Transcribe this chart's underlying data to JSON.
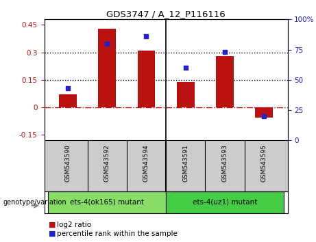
{
  "title": "GDS3747 / A_12_P116116",
  "samples": [
    "GSM543590",
    "GSM543592",
    "GSM543594",
    "GSM543591",
    "GSM543593",
    "GSM543595"
  ],
  "log2_values": [
    0.07,
    0.43,
    0.31,
    0.14,
    0.28,
    -0.055
  ],
  "percentile_values": [
    43,
    80,
    86,
    60,
    73,
    20
  ],
  "ylim_left": [
    -0.18,
    0.48
  ],
  "ylim_right": [
    0,
    100
  ],
  "yticks_left": [
    -0.15,
    0,
    0.15,
    0.3,
    0.45
  ],
  "yticks_right": [
    0,
    25,
    50,
    75,
    100
  ],
  "hlines": [
    0.15,
    0.3
  ],
  "bar_color": "#bb1111",
  "dot_color": "#2222cc",
  "group1_label": "ets-4(ok165) mutant",
  "group2_label": "ets-4(uz1) mutant",
  "group1_color": "#88dd66",
  "group2_color": "#44cc44",
  "genotype_label": "genotype/variation",
  "legend1": "log2 ratio",
  "legend2": "percentile rank within the sample",
  "bar_width": 0.45,
  "label_bg": "#cccccc"
}
